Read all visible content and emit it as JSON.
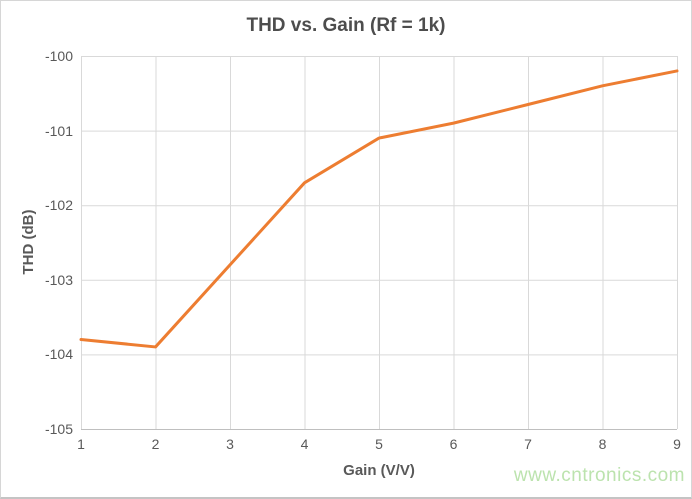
{
  "chart_data": {
    "type": "line",
    "title": "THD vs. Gain (Rf = 1k)",
    "xlabel": "Gain (V/V)",
    "ylabel": "THD (dB)",
    "x": [
      1,
      2,
      3,
      4,
      5,
      6,
      7,
      8,
      9
    ],
    "y": [
      -103.8,
      -103.9,
      -102.8,
      -101.7,
      -101.1,
      -100.9,
      -100.65,
      -100.4,
      -100.2
    ],
    "xlim": [
      1,
      9
    ],
    "ylim": [
      -105,
      -100
    ],
    "x_ticks": [
      "1",
      "2",
      "3",
      "4",
      "5",
      "6",
      "7",
      "8",
      "9"
    ],
    "y_ticks": [
      "-100",
      "-101",
      "-102",
      "-103",
      "-104",
      "-105"
    ],
    "grid": true,
    "legend": false,
    "line_color": "#ED7D31",
    "line_width": 3,
    "grid_color": "#D9D9D9",
    "axis_color": "#BFBFBF",
    "tick_color": "#595959",
    "title_color": "#4D4D4D"
  },
  "watermark": {
    "text": "www.cntronics.com",
    "color": "#BCE3AE"
  }
}
